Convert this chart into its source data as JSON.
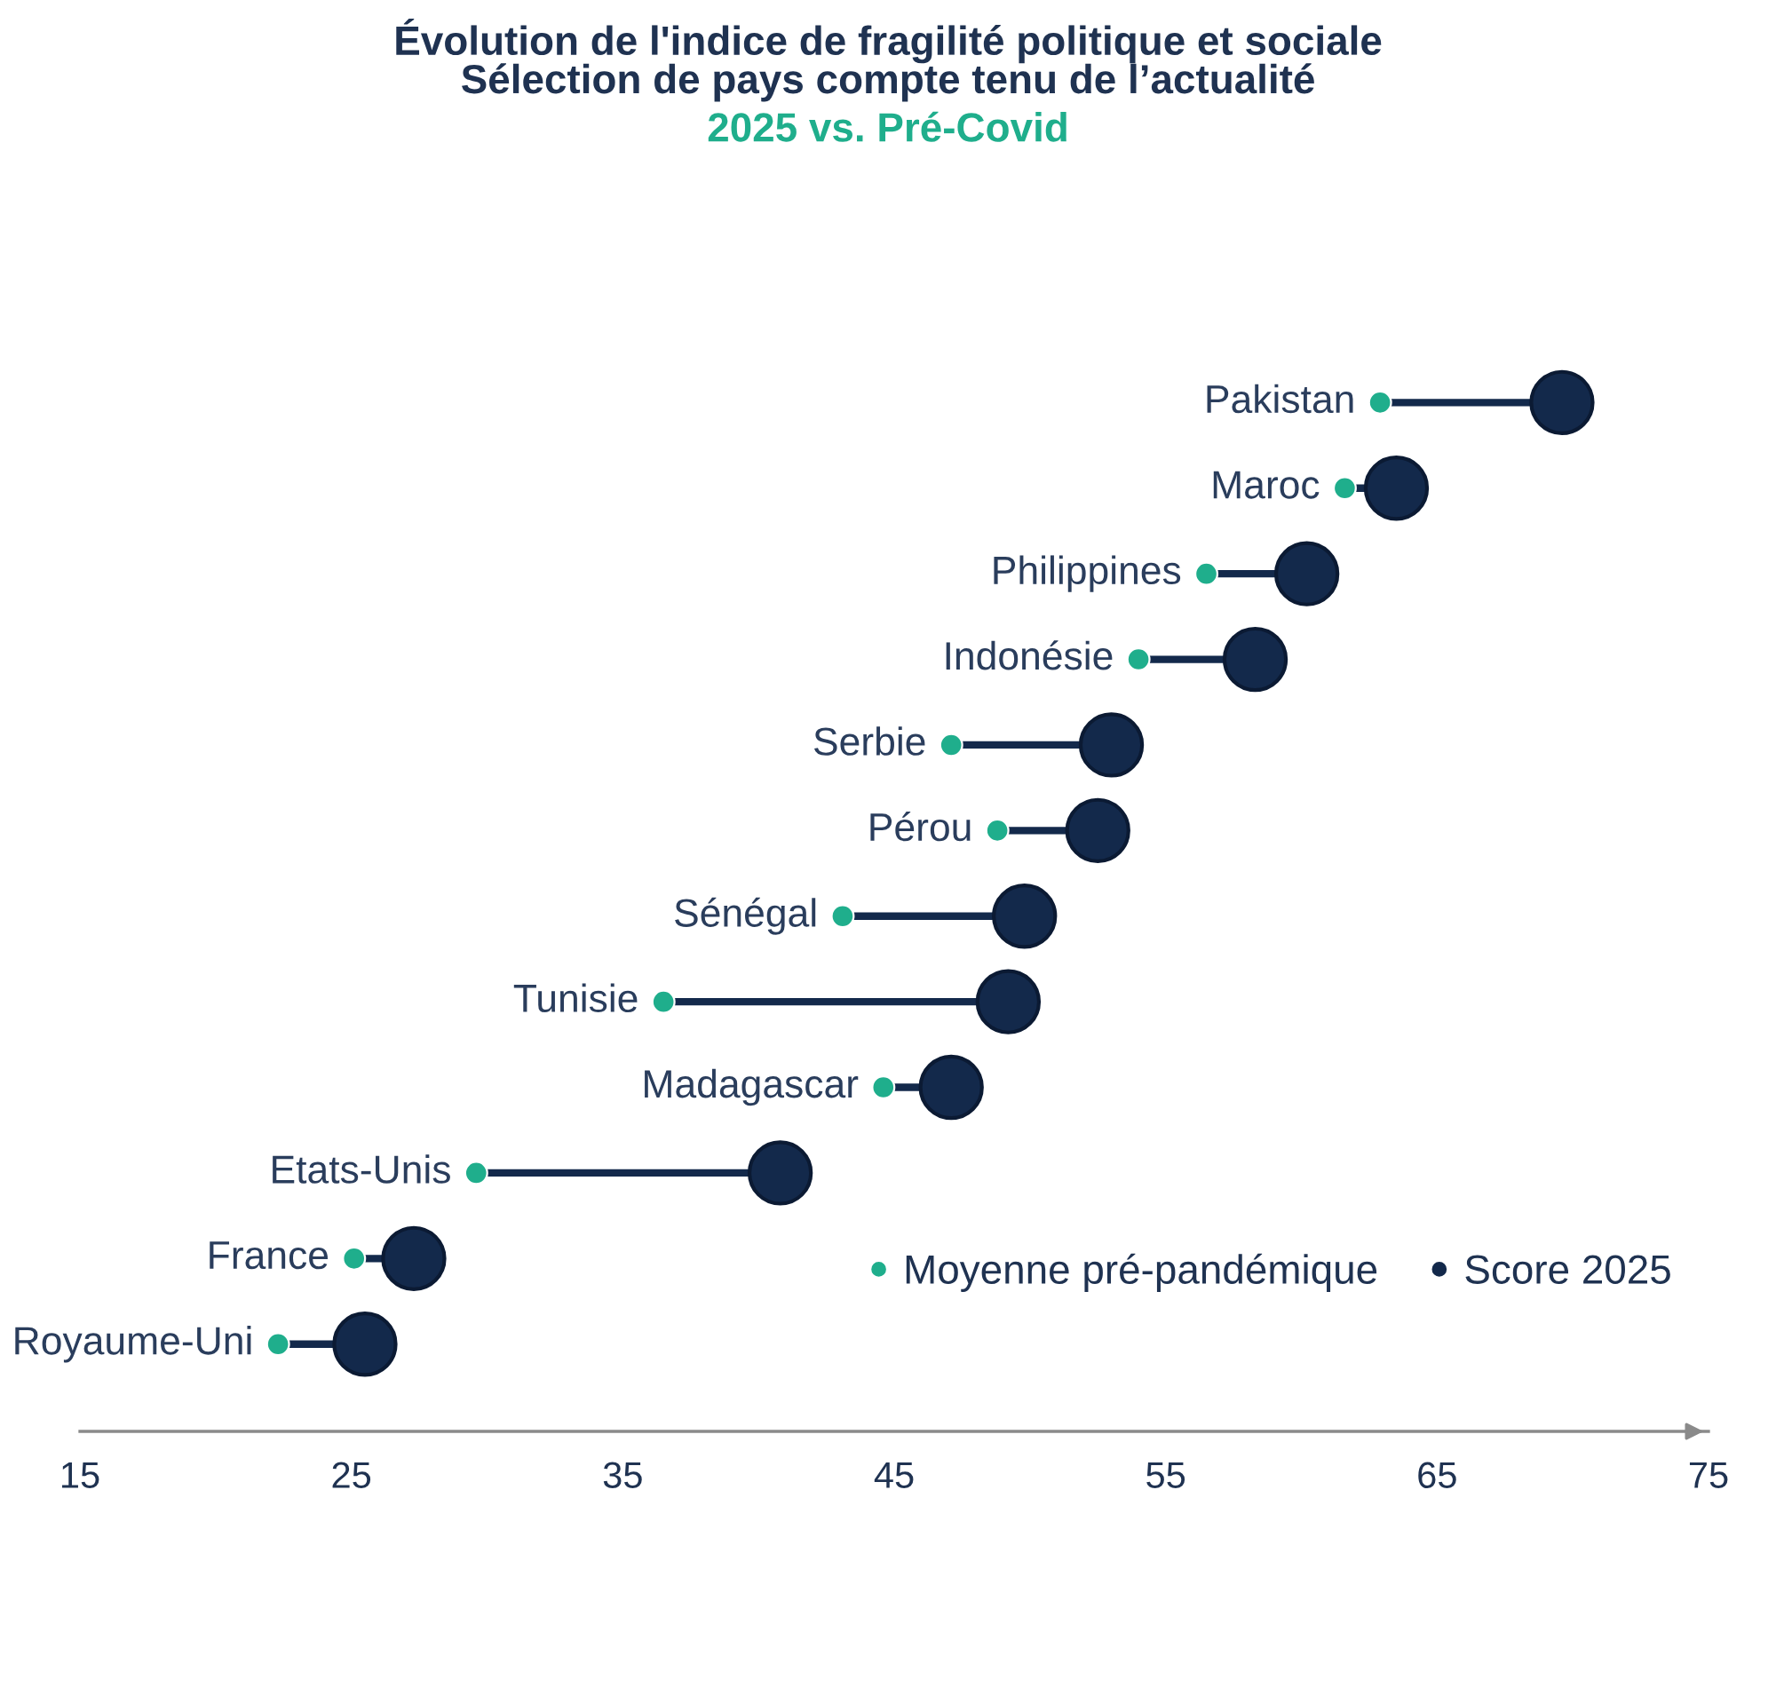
{
  "chart_data": {
    "type": "scatter",
    "orientation": "horizontal",
    "title": "Évolution de l'indice de fragilité politique et sociale\nSélection de pays compte tenu de l’actualité",
    "subtitle": "2025 vs. Pré-Covid",
    "categories": [
      "Pakistan",
      "Maroc",
      "Philippines",
      "Indonésie",
      "Serbie",
      "Pérou",
      "Sénégal",
      "Tunisie",
      "Madagascar",
      "Etats-Unis",
      "France",
      "Royaume-Uni"
    ],
    "series": [
      {
        "name": "Moyenne pré-pandémique",
        "color": "#1fae8c",
        "values": [
          62.9,
          61.6,
          56.5,
          54.0,
          47.1,
          48.8,
          43.1,
          36.5,
          44.6,
          29.6,
          25.1,
          22.3
        ]
      },
      {
        "name": "Score 2025",
        "color": "#13294b",
        "values": [
          69.6,
          63.5,
          60.2,
          58.3,
          53.0,
          52.5,
          49.8,
          49.2,
          47.1,
          40.8,
          27.3,
          25.5
        ]
      }
    ],
    "xlim": [
      15,
      75
    ],
    "xticks": [
      15,
      25,
      35,
      45,
      55,
      65,
      75
    ],
    "marker": "circle",
    "legend": "bottom right"
  }
}
